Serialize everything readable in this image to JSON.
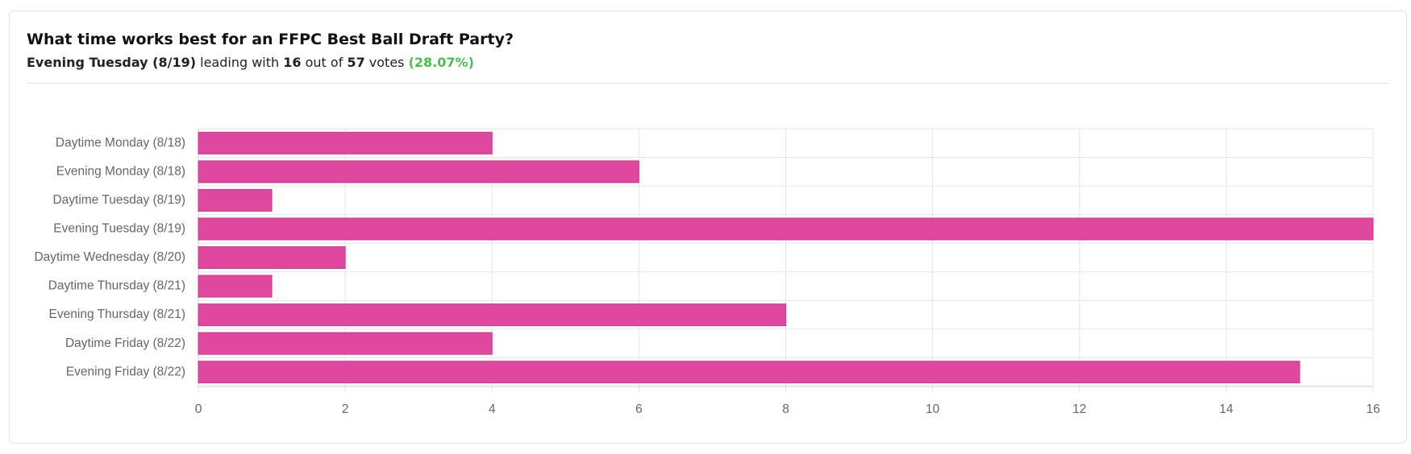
{
  "chart_data": {
    "type": "bar",
    "orientation": "horizontal",
    "title": "What time works best for an FFPC Best Ball Draft Party?",
    "categories": [
      "Daytime Monday (8/18)",
      "Evening Monday (8/18)",
      "Daytime Tuesday (8/19)",
      "Evening Tuesday (8/19)",
      "Daytime Wednesday (8/20)",
      "Daytime Thursday (8/21)",
      "Evening Thursday (8/21)",
      "Daytime Friday (8/22)",
      "Evening Friday (8/22)"
    ],
    "values": [
      4,
      6,
      1,
      16,
      2,
      1,
      8,
      4,
      15
    ],
    "color": "#e0479e",
    "xlim": [
      0,
      16
    ],
    "xticks": [
      0,
      2,
      4,
      6,
      8,
      10,
      12,
      14,
      16
    ],
    "grid": true
  },
  "summary": {
    "leader": "Evening Tuesday (8/19)",
    "leading_text": "leading with",
    "leader_votes": 16,
    "out_of_text": "out of",
    "total_votes": 57,
    "votes_text": "votes",
    "percent_label": "(28.07%)"
  }
}
